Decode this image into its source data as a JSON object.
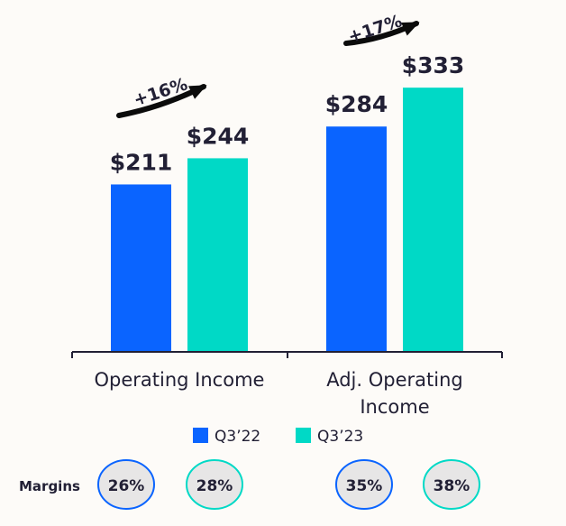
{
  "chart_data": {
    "type": "bar",
    "categories": [
      "Operating Income",
      "Adj. Operating Income"
    ],
    "category_lines": [
      [
        "Operating Income"
      ],
      [
        "Adj. Operating",
        "Income"
      ]
    ],
    "series": [
      {
        "name": "Q3’22",
        "values": [
          211,
          284
        ],
        "labels": [
          "$211",
          "$284"
        ],
        "color": "#0a64ff"
      },
      {
        "name": "Q3’23",
        "values": [
          244,
          333
        ],
        "labels": [
          "$244",
          "$333"
        ],
        "color": "#00d9c6"
      }
    ],
    "ylim": [
      0,
      340
    ],
    "growth": [
      "+16%",
      "+17%"
    ],
    "legend_position": "bottom",
    "grid": false
  },
  "margins": {
    "label": "Margins",
    "values": [
      "26%",
      "28%",
      "35%",
      "38%"
    ],
    "border_colors": [
      "#0a64ff",
      "#00d9c6",
      "#0a64ff",
      "#00d9c6"
    ]
  },
  "colors": {
    "background": "#fdfbf8",
    "text": "#222035",
    "axis": "#222035",
    "badge_fill": "#e7e6e6"
  }
}
